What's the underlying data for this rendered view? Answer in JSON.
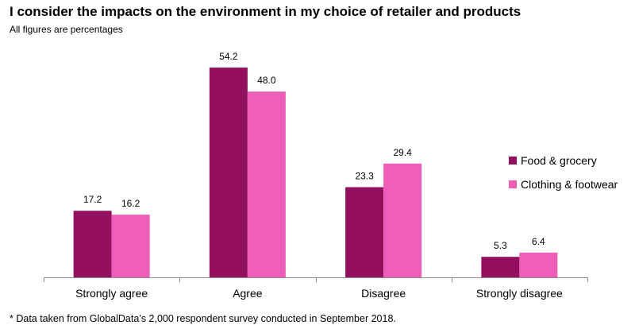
{
  "title": "I consider the impacts on the environment in my choice of retailer and products",
  "subtitle": "All figures are percentages",
  "footnote": "* Data taken from GlobalData’s 2,000 respondent survey conducted in September 2018.",
  "chart_data": {
    "type": "bar",
    "categories": [
      "Strongly agree",
      "Agree",
      "Disagree",
      "Strongly disagree"
    ],
    "series": [
      {
        "name": "Food & grocery",
        "values": [
          17.2,
          54.2,
          23.3,
          5.3
        ],
        "color": "#92105f"
      },
      {
        "name": "Clothing & footwear",
        "values": [
          16.2,
          48.0,
          29.4,
          6.4
        ],
        "color": "#ee5eb9"
      }
    ],
    "ylim": [
      0,
      60
    ],
    "grid": false,
    "legend_position": "right"
  }
}
